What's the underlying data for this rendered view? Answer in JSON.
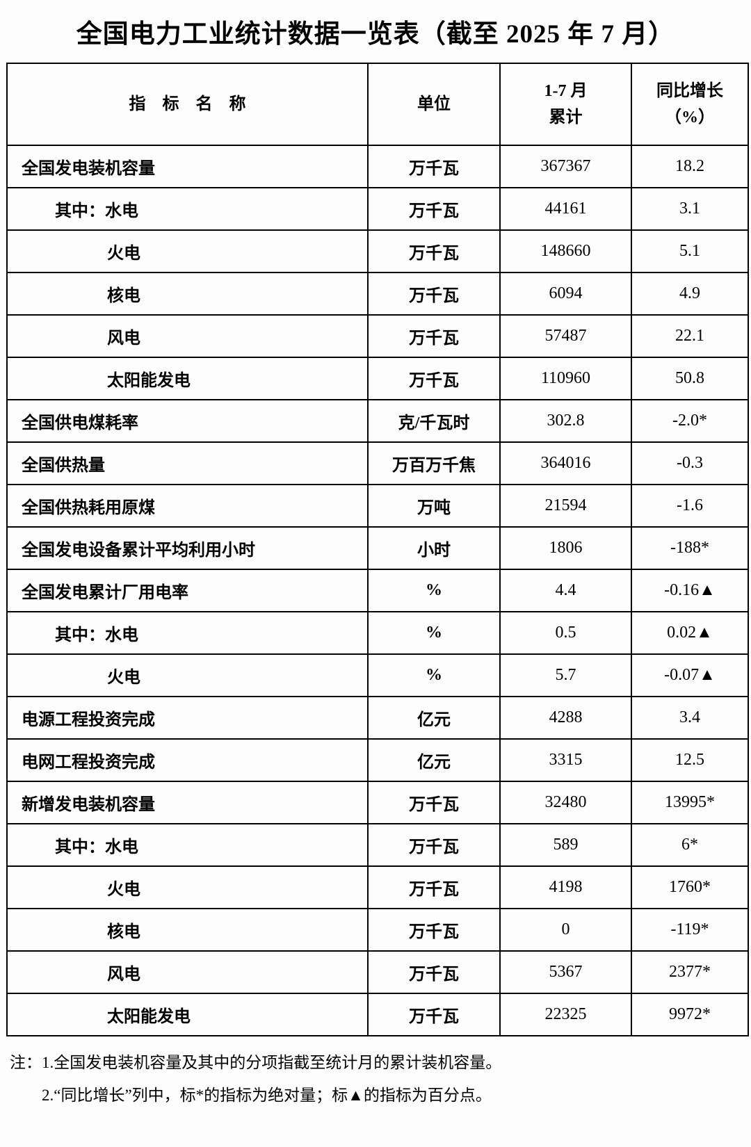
{
  "title": "全国电力工业统计数据一览表（截至 2025 年 7 月）",
  "table": {
    "headers": {
      "indicator": "指　标　名　称",
      "unit": "单位",
      "cumulative_line1": "1-7 月",
      "cumulative_line2": "累计",
      "growth_line1": "同比增长",
      "growth_line2": "（%）"
    },
    "rows": [
      {
        "name": "全国发电装机容量",
        "unit": "万千瓦",
        "value": "367367",
        "growth": "18.2",
        "indent": 0
      },
      {
        "name": "其中：水电",
        "unit": "万千瓦",
        "value": "44161",
        "growth": "3.1",
        "indent": 1
      },
      {
        "name": "火电",
        "unit": "万千瓦",
        "value": "148660",
        "growth": "5.1",
        "indent": 2
      },
      {
        "name": "核电",
        "unit": "万千瓦",
        "value": "6094",
        "growth": "4.9",
        "indent": 2
      },
      {
        "name": "风电",
        "unit": "万千瓦",
        "value": "57487",
        "growth": "22.1",
        "indent": 2
      },
      {
        "name": "太阳能发电",
        "unit": "万千瓦",
        "value": "110960",
        "growth": "50.8",
        "indent": 2
      },
      {
        "name": "全国供电煤耗率",
        "unit": "克/千瓦时",
        "value": "302.8",
        "growth": "-2.0*",
        "indent": 0
      },
      {
        "name": "全国供热量",
        "unit": "万百万千焦",
        "value": "364016",
        "growth": "-0.3",
        "indent": 0
      },
      {
        "name": "全国供热耗用原煤",
        "unit": "万吨",
        "value": "21594",
        "growth": "-1.6",
        "indent": 0
      },
      {
        "name": "全国发电设备累计平均利用小时",
        "unit": "小时",
        "value": "1806",
        "growth": "-188*",
        "indent": 0
      },
      {
        "name": "全国发电累计厂用电率",
        "unit": "%",
        "value": "4.4",
        "growth": "-0.16▲",
        "indent": 0
      },
      {
        "name": "其中：水电",
        "unit": "%",
        "value": "0.5",
        "growth": "0.02▲",
        "indent": 1
      },
      {
        "name": "火电",
        "unit": "%",
        "value": "5.7",
        "growth": "-0.07▲",
        "indent": 2
      },
      {
        "name": "电源工程投资完成",
        "unit": "亿元",
        "value": "4288",
        "growth": "3.4",
        "indent": 0
      },
      {
        "name": "电网工程投资完成",
        "unit": "亿元",
        "value": "3315",
        "growth": "12.5",
        "indent": 0
      },
      {
        "name": "新增发电装机容量",
        "unit": "万千瓦",
        "value": "32480",
        "growth": "13995*",
        "indent": 0
      },
      {
        "name": "其中：水电",
        "unit": "万千瓦",
        "value": "589",
        "growth": "6*",
        "indent": 1
      },
      {
        "name": "火电",
        "unit": "万千瓦",
        "value": "4198",
        "growth": "1760*",
        "indent": 2
      },
      {
        "name": "核电",
        "unit": "万千瓦",
        "value": "0",
        "growth": "-119*",
        "indent": 2
      },
      {
        "name": "风电",
        "unit": "万千瓦",
        "value": "5367",
        "growth": "2377*",
        "indent": 2
      },
      {
        "name": "太阳能发电",
        "unit": "万千瓦",
        "value": "22325",
        "growth": "9972*",
        "indent": 2
      }
    ]
  },
  "notes": [
    "注：1.全国发电装机容量及其中的分项指截至统计月的累计装机容量。",
    "2.“同比增长”列中，标*的指标为绝对量；标▲的指标为百分点。"
  ]
}
